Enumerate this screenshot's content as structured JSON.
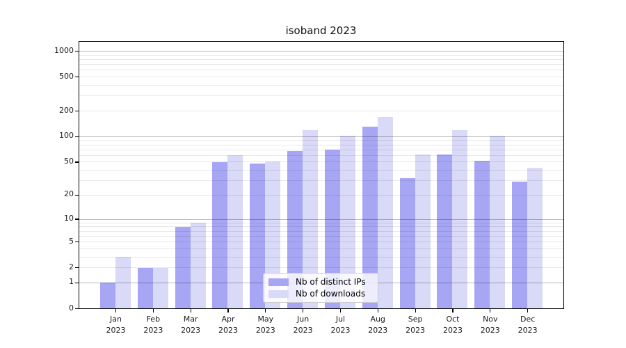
{
  "chart_data": {
    "type": "bar",
    "title": "isoband 2023",
    "months": [
      "Jan",
      "Feb",
      "Mar",
      "Apr",
      "May",
      "Jun",
      "Jul",
      "Aug",
      "Sep",
      "Oct",
      "Nov",
      "Dec"
    ],
    "year": "2023",
    "series": [
      {
        "name": "Nb of distinct IPs",
        "color": "#a6a6f4",
        "values": [
          1,
          2,
          8,
          50,
          48,
          68,
          70,
          130,
          32,
          62,
          52,
          29
        ]
      },
      {
        "name": "Nb of downloads",
        "color": "#d9d9f8",
        "values": [
          3,
          2,
          9,
          60,
          51,
          120,
          103,
          170,
          62,
          120,
          102,
          43
        ]
      }
    ],
    "y_ticks": [
      1000,
      500,
      200,
      100,
      50,
      20,
      10,
      5,
      2,
      1,
      0
    ],
    "y_scale": "log1p",
    "ylim": [
      0,
      1313
    ],
    "grid": "both",
    "legend_position": "lower-center",
    "axis_color": "#000000",
    "major_grid_color": "rgba(0,0,0,0.28)",
    "minor_grid_color": "rgba(0,0,0,0.09)"
  }
}
